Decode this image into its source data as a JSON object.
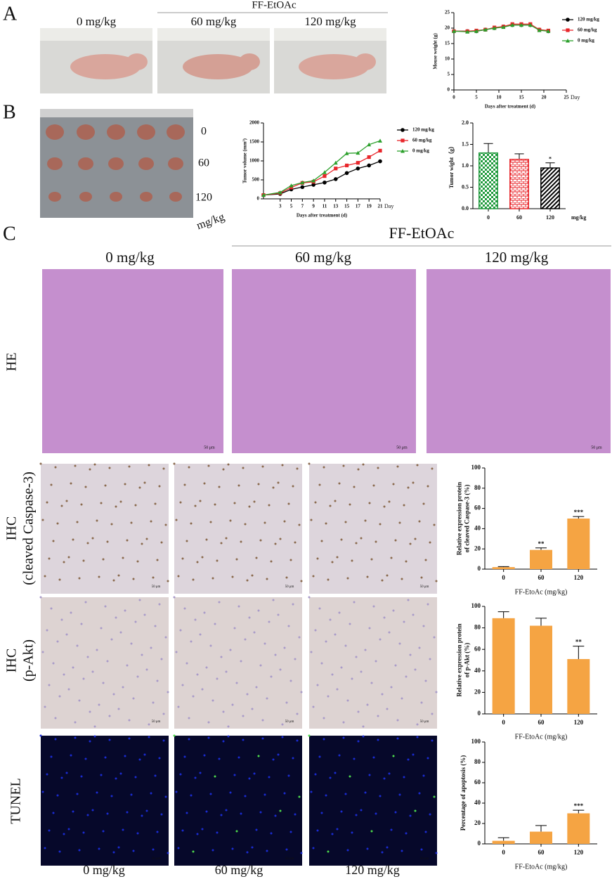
{
  "panel_labels": [
    "A",
    "B",
    "C"
  ],
  "panel_a": {
    "group_label": "FF-EtOAc",
    "photo_labels": [
      "0 mg/kg",
      "60 mg/kg",
      "120 mg/kg"
    ]
  },
  "panel_b": {
    "row_labels": [
      "0",
      "60",
      "120"
    ],
    "unit": "mg/kg"
  },
  "panel_c": {
    "group_label": "FF-EtOAc",
    "column_labels": [
      "0 mg/kg",
      "60 mg/kg",
      "120 mg/kg"
    ],
    "row_labels": [
      [
        "HE"
      ],
      [
        "IHC",
        "(cleaved Caspase-3)"
      ],
      [
        "IHC",
        "(p-Akt)"
      ],
      [
        "TUNEL"
      ]
    ],
    "bottom_labels": [
      "0 mg/kg",
      "60 mg/kg",
      "120 mg/kg"
    ],
    "scale_bar": "50 μm"
  },
  "chart_data": [
    {
      "type": "line",
      "xlabel": "Days after treatment (d)",
      "ylabel": [
        "Mouse weight (g)"
      ],
      "x_unit": "Day",
      "x": [
        0,
        3,
        5,
        7,
        9,
        11,
        13,
        15,
        17,
        19,
        21
      ],
      "series": [
        {
          "name": "120 mg/kg",
          "color": "#000000",
          "marker": "circle",
          "values": [
            19,
            19,
            19,
            19.5,
            20,
            20.5,
            21,
            21,
            21,
            19.5,
            19
          ]
        },
        {
          "name": "60 mg/kg",
          "color": "#e8262b",
          "marker": "square",
          "values": [
            19,
            19,
            19.2,
            19.5,
            20.2,
            20.5,
            21.3,
            21.3,
            21.3,
            19.5,
            19.2
          ]
        },
        {
          "name": "0 mg/kg",
          "color": "#2ca02c",
          "marker": "triangle",
          "values": [
            19,
            18.8,
            19,
            19.5,
            20,
            20.3,
            21,
            21,
            21,
            19.3,
            19
          ]
        }
      ],
      "xlim": [
        0,
        25
      ],
      "xticks": [
        0,
        5,
        10,
        15,
        20,
        25
      ],
      "ylim": [
        0,
        25
      ],
      "yticks": [
        0,
        5,
        10,
        15,
        20,
        25
      ],
      "legend": "right"
    },
    {
      "type": "line",
      "xlabel": "Days after treatment (d)",
      "ylabel": [
        "Tumor volume (mm³)"
      ],
      "x_unit": "Day",
      "x": [
        0,
        3,
        5,
        7,
        9,
        11,
        13,
        15,
        17,
        19,
        21
      ],
      "series": [
        {
          "name": "120 mg/kg",
          "color": "#000000",
          "marker": "circle",
          "values": [
            100,
            130,
            250,
            310,
            370,
            430,
            520,
            680,
            800,
            880,
            990
          ]
        },
        {
          "name": "60 mg/kg",
          "color": "#e8262b",
          "marker": "square",
          "values": [
            100,
            150,
            300,
            420,
            450,
            600,
            800,
            880,
            950,
            1100,
            1270
          ]
        },
        {
          "name": "0 mg/kg",
          "color": "#2ca02c",
          "marker": "triangle",
          "values": [
            100,
            170,
            350,
            430,
            480,
            700,
            950,
            1200,
            1210,
            1430,
            1530
          ]
        }
      ],
      "xlim": [
        0,
        21
      ],
      "xticks": [
        3,
        5,
        7,
        9,
        11,
        13,
        15,
        17,
        19,
        21
      ],
      "ylim": [
        0,
        2000
      ],
      "yticks": [
        0,
        500,
        1000,
        1500,
        2000
      ],
      "legend": "right"
    },
    {
      "type": "bar",
      "ylabel": [
        "Tumor wight（g）"
      ],
      "x_unit": "mg/kg",
      "categories": [
        "0",
        "60",
        "120"
      ],
      "values": [
        1.3,
        1.15,
        0.95
      ],
      "errors": [
        0.22,
        0.13,
        0.12
      ],
      "annotations": [
        null,
        null,
        "*"
      ],
      "colors": [
        "#1f9a3c",
        "#e8262b",
        "#000000"
      ],
      "patterns": [
        "checker",
        "brick",
        "stripes"
      ],
      "ylim": [
        0,
        2
      ],
      "yticks": [
        {
          "value": 0,
          "label": "0.0"
        },
        {
          "value": 0.5,
          "label": "0.5"
        },
        {
          "value": 1,
          "label": "1.0"
        },
        {
          "value": 1.5,
          "label": "1.5"
        },
        {
          "value": 2,
          "label": "2.0"
        }
      ]
    },
    {
      "type": "bar",
      "xlabel": "FF-EtoAc (mg/kg)",
      "ylabel": [
        "Relative expression protein",
        "of cleaved Caspase-3 (%)"
      ],
      "categories": [
        "0",
        "60",
        "120"
      ],
      "values": [
        2,
        19,
        50
      ],
      "errors": [
        0.5,
        2,
        2
      ],
      "annotations": [
        null,
        "**",
        "***"
      ],
      "color": "#f5a443",
      "ylim": [
        0,
        100
      ],
      "yticks": [
        0,
        20,
        40,
        60,
        80,
        100
      ]
    },
    {
      "type": "bar",
      "xlabel": "FF-EtoAc (mg/kg)",
      "ylabel": [
        "Relative expression protein",
        "of p-Akt (%)"
      ],
      "categories": [
        "0",
        "60",
        "120"
      ],
      "values": [
        89,
        82,
        51
      ],
      "errors": [
        6,
        7,
        12
      ],
      "annotations": [
        null,
        null,
        "**"
      ],
      "color": "#f5a443",
      "ylim": [
        0,
        100
      ],
      "yticks": [
        0,
        20,
        40,
        60,
        80,
        100
      ]
    },
    {
      "type": "bar",
      "xlabel": "FF-EtoAc (mg/kg)",
      "ylabel": [
        "Percentage of  apoptosis (%)"
      ],
      "categories": [
        "0",
        "60",
        "120"
      ],
      "values": [
        3,
        12,
        30
      ],
      "errors": [
        3,
        6,
        3
      ],
      "annotations": [
        null,
        null,
        "***"
      ],
      "color": "#f5a443",
      "ylim": [
        0,
        100
      ],
      "yticks": [
        0,
        20,
        40,
        60,
        80,
        100
      ]
    }
  ]
}
